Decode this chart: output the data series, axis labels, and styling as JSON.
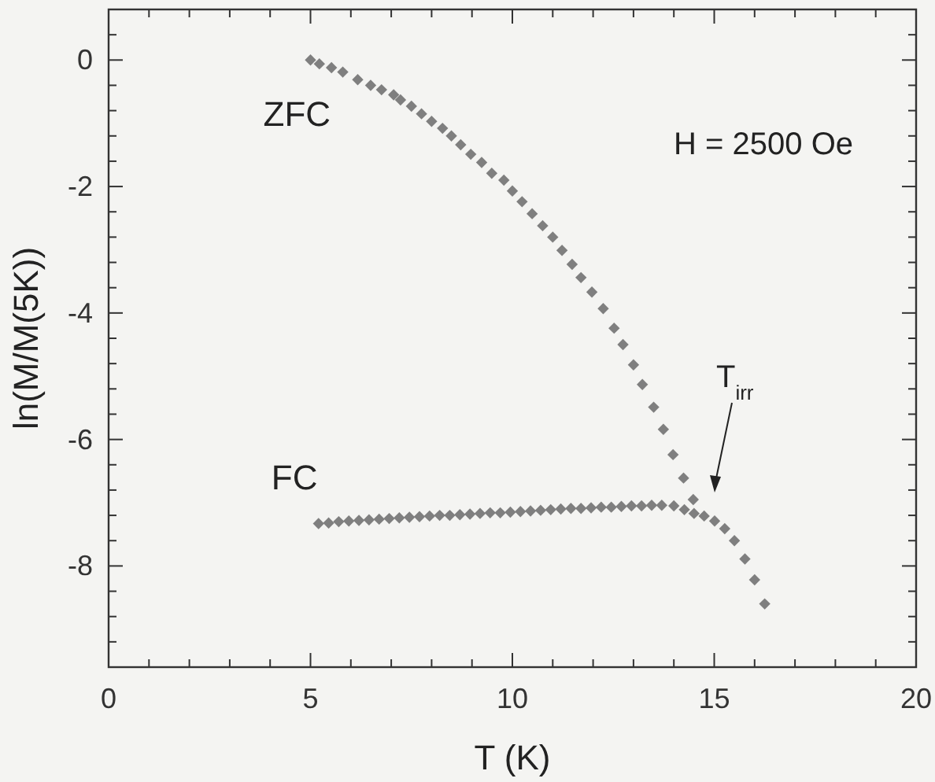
{
  "chart_data": {
    "type": "scatter",
    "xlabel": "T (K)",
    "ylabel": "ln(M/M(5K))",
    "xlim": [
      0,
      20
    ],
    "ylim": [
      -9.6,
      0.8
    ],
    "xticks": [
      0,
      {
        "value": 1,
        "label": null
      },
      {
        "value": 2,
        "label": null
      },
      {
        "value": 3,
        "label": null
      },
      {
        "value": 4,
        "label": null
      },
      5,
      {
        "value": 6,
        "label": null
      },
      {
        "value": 7,
        "label": null
      },
      {
        "value": 8,
        "label": null
      },
      {
        "value": 9,
        "label": null
      },
      10,
      {
        "value": 11,
        "label": null
      },
      {
        "value": 12,
        "label": null
      },
      {
        "value": 13,
        "label": null
      },
      {
        "value": 14,
        "label": null
      },
      15,
      {
        "value": 16,
        "label": null
      },
      {
        "value": 17,
        "label": null
      },
      {
        "value": 18,
        "label": null
      },
      {
        "value": 19,
        "label": null
      },
      20
    ],
    "yticks": [
      {
        "value": 0.4,
        "label": null
      },
      0,
      {
        "value": -0.4,
        "label": null
      },
      {
        "value": -0.8,
        "label": null
      },
      {
        "value": -1.2,
        "label": null
      },
      {
        "value": -1.6,
        "label": null
      },
      -2,
      {
        "value": -2.4,
        "label": null
      },
      {
        "value": -2.8,
        "label": null
      },
      {
        "value": -3.2,
        "label": null
      },
      {
        "value": -3.6,
        "label": null
      },
      -4,
      {
        "value": -4.4,
        "label": null
      },
      {
        "value": -4.8,
        "label": null
      },
      {
        "value": -5.2,
        "label": null
      },
      {
        "value": -5.6,
        "label": null
      },
      -6,
      {
        "value": -6.4,
        "label": null
      },
      {
        "value": -6.8,
        "label": null
      },
      {
        "value": -7.2,
        "label": null
      },
      {
        "value": -7.6,
        "label": null
      },
      -8,
      {
        "value": -8.4,
        "label": null
      },
      {
        "value": -8.8,
        "label": null
      },
      {
        "value": -9.2,
        "label": null
      }
    ],
    "marker": "diamond",
    "grid": false,
    "legend": false,
    "series": [
      {
        "name": "ZFC",
        "color": "#7f7f7f",
        "x": [
          5.0,
          5.22,
          5.52,
          5.8,
          6.17,
          6.49,
          6.76,
          7.06,
          7.23,
          7.5,
          7.75,
          8.0,
          8.27,
          8.49,
          8.72,
          8.97,
          9.24,
          9.49,
          9.79,
          10.0,
          10.24,
          10.49,
          10.75,
          11.0,
          11.23,
          11.48,
          11.7,
          11.97,
          12.25,
          12.52,
          12.74,
          13.0,
          13.22,
          13.5,
          13.74,
          13.98,
          14.24,
          14.48,
          14.75,
          15.01,
          15.26,
          15.5,
          15.76,
          16.0,
          16.25
        ],
        "values": [
          0,
          -0.06,
          -0.12,
          -0.19,
          -0.31,
          -0.4,
          -0.47,
          -0.55,
          -0.63,
          -0.73,
          -0.85,
          -0.97,
          -1.08,
          -1.2,
          -1.34,
          -1.49,
          -1.62,
          -1.79,
          -1.9,
          -2.07,
          -2.24,
          -2.43,
          -2.62,
          -2.8,
          -3.01,
          -3.23,
          -3.44,
          -3.67,
          -3.93,
          -4.24,
          -4.5,
          -4.82,
          -5.13,
          -5.49,
          -5.84,
          -6.24,
          -6.61,
          -6.95,
          -7.21,
          -7.29,
          -7.41,
          -7.6,
          -7.89,
          -8.22,
          -8.6
        ]
      },
      {
        "name": "FC",
        "color": "#7f7f7f",
        "x": [
          5.2,
          5.45,
          5.7,
          5.95,
          6.2,
          6.45,
          6.7,
          6.95,
          7.2,
          7.45,
          7.7,
          7.95,
          8.2,
          8.45,
          8.7,
          8.95,
          9.2,
          9.45,
          9.7,
          9.95,
          10.2,
          10.45,
          10.7,
          10.95,
          11.2,
          11.45,
          11.7,
          11.95,
          12.2,
          12.45,
          12.7,
          12.95,
          13.2,
          13.45,
          13.7,
          14.0,
          14.26,
          14.5
        ],
        "values": [
          -7.33,
          -7.32,
          -7.3,
          -7.29,
          -7.28,
          -7.27,
          -7.26,
          -7.25,
          -7.24,
          -7.23,
          -7.22,
          -7.21,
          -7.2,
          -7.2,
          -7.19,
          -7.18,
          -7.17,
          -7.16,
          -7.16,
          -7.15,
          -7.14,
          -7.13,
          -7.12,
          -7.11,
          -7.1,
          -7.09,
          -7.09,
          -7.08,
          -7.07,
          -7.07,
          -7.06,
          -7.05,
          -7.05,
          -7.04,
          -7.04,
          -7.05,
          -7.11,
          -7.17
        ]
      }
    ],
    "annotations": [
      "H = 2500 Oe",
      "T$_{irr}$"
    ]
  }
}
